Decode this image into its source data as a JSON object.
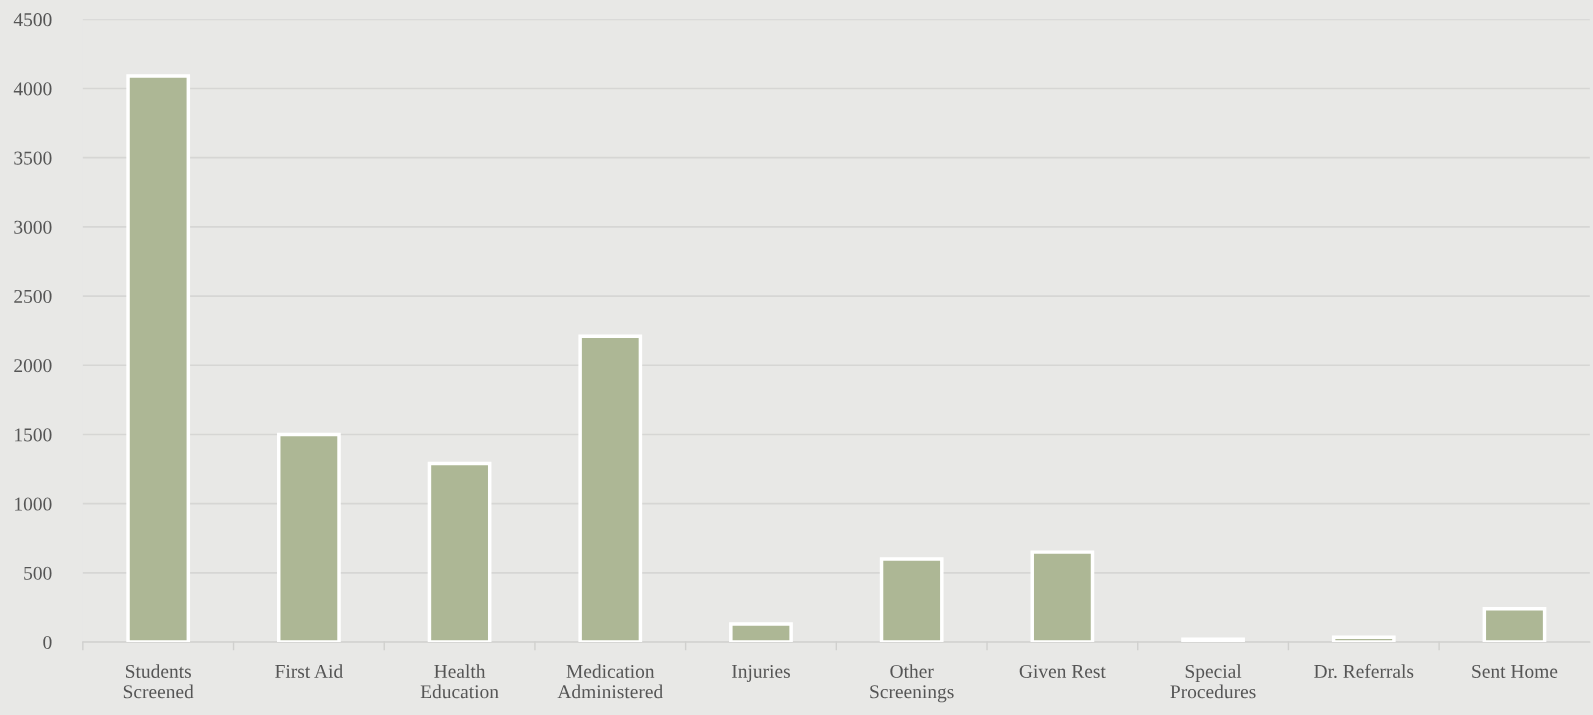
{
  "chart_data": {
    "type": "bar",
    "categories": [
      "Students\nScreened",
      "First Aid",
      "Health\nEducation",
      "Medication\nAdministered",
      "Injuries",
      "Other\nScreenings",
      "Given Rest",
      "Special\nProcedures",
      "Dr. Referrals",
      "Sent Home"
    ],
    "values": [
      4090,
      1500,
      1290,
      2210,
      130,
      600,
      650,
      20,
      35,
      240
    ],
    "color": "#adb795",
    "ylim": [
      0,
      4500
    ],
    "yticks": [
      0,
      500,
      1000,
      1500,
      2000,
      2500,
      3000,
      3500,
      4000,
      4500
    ],
    "grid": "y",
    "legend": false
  }
}
